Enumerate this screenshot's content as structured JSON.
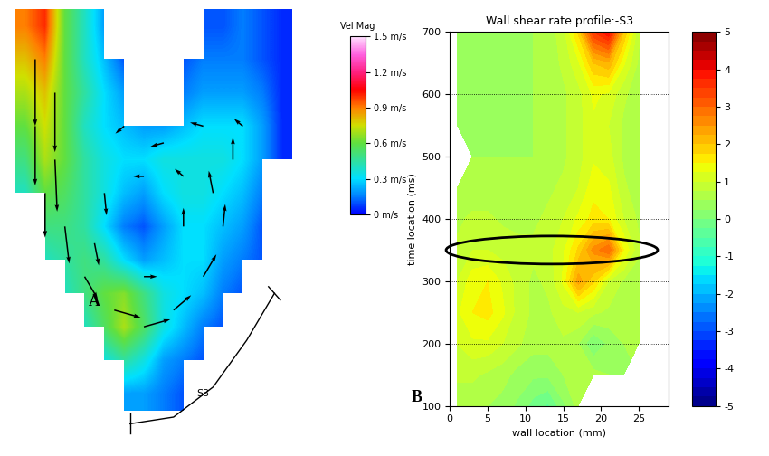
{
  "chart_data": [
    {
      "type": "vector_field",
      "label": "A",
      "colorbar_title": "Vel Mag",
      "annotation": "S3",
      "tick_labels": false,
      "cells": [
        [
          0.9,
          1.0,
          0.6,
          0.4,
          0.2,
          null,
          null,
          null,
          null,
          0.1,
          0.1,
          0.15,
          0.1,
          0.05
        ],
        [
          0.8,
          0.9,
          0.6,
          0.4,
          0.25,
          0.1,
          null,
          null,
          0.1,
          0.15,
          0.15,
          0.15,
          0.1,
          0.05
        ],
        [
          0.7,
          0.8,
          0.6,
          0.45,
          0.3,
          0.2,
          null,
          null,
          0.15,
          0.2,
          0.2,
          0.2,
          0.15,
          0.05
        ],
        [
          0.6,
          0.75,
          0.6,
          0.4,
          0.3,
          0.25,
          0.2,
          0.2,
          0.25,
          0.3,
          0.3,
          0.3,
          0.2,
          0.05
        ],
        [
          0.5,
          0.7,
          0.6,
          0.45,
          0.35,
          0.3,
          0.3,
          0.35,
          0.35,
          0.35,
          0.35,
          0.3,
          0.2,
          0.05
        ],
        [
          0.4,
          0.6,
          0.55,
          0.45,
          0.35,
          0.25,
          0.2,
          0.3,
          0.35,
          0.35,
          0.3,
          0.25,
          0.15,
          null
        ],
        [
          null,
          0.5,
          0.5,
          0.45,
          0.3,
          0.15,
          0.1,
          0.2,
          0.3,
          0.3,
          0.25,
          0.2,
          0.1,
          null
        ],
        [
          null,
          0.4,
          0.45,
          0.5,
          0.45,
          0.3,
          0.2,
          0.25,
          0.3,
          0.3,
          0.2,
          0.15,
          0.1,
          null
        ],
        [
          null,
          null,
          0.4,
          0.5,
          0.6,
          0.65,
          0.5,
          0.35,
          0.3,
          0.25,
          0.15,
          0.1,
          null,
          null
        ],
        [
          null,
          null,
          null,
          0.4,
          0.55,
          0.7,
          0.55,
          0.35,
          0.25,
          0.15,
          0.1,
          null,
          null,
          null
        ],
        [
          null,
          null,
          null,
          null,
          0.35,
          0.45,
          0.35,
          0.2,
          0.15,
          0.1,
          null,
          null,
          null,
          null
        ],
        [
          null,
          null,
          null,
          null,
          null,
          0.2,
          0.2,
          0.15,
          0.1,
          null,
          null,
          null,
          null,
          null
        ]
      ],
      "vectors": {
        "x": [
          0.5,
          0.5,
          1,
          1.5,
          1.5,
          2,
          3,
          4.5,
          6,
          7.5,
          9,
          10,
          10.5,
          9.5,
          9,
          7,
          5,
          11,
          4,
          6,
          8,
          6,
          8,
          3.5
        ],
        "y": [
          1,
          3,
          5,
          2,
          4,
          6,
          7.5,
          8.5,
          9,
          8.5,
          7.5,
          6,
          4,
          5,
          3,
          3.5,
          3,
          3,
          5,
          7.5,
          6,
          4.5,
          4.5,
          6.5
        ],
        "u": [
          0,
          0,
          0,
          0,
          0.05,
          0.1,
          0.3,
          0.6,
          0.6,
          0.4,
          0.3,
          0.05,
          0,
          -0.1,
          -0.3,
          -0.3,
          -0.2,
          -0.2,
          0.05,
          0.3,
          0,
          -0.25,
          -0.2,
          0.1
        ],
        "v": [
          0.9,
          0.8,
          0.6,
          0.8,
          0.7,
          0.5,
          0.3,
          0.1,
          -0.1,
          -0.2,
          -0.3,
          -0.3,
          -0.3,
          -0.3,
          -0.05,
          0.05,
          0.1,
          -0.1,
          0.3,
          0,
          -0.25,
          0,
          -0.1,
          0.3
        ]
      },
      "colorbar_range": [
        0,
        1.5
      ],
      "colorbar_ticks": [
        {
          "value": 0,
          "label": "0 m/s"
        },
        {
          "value": 0.3,
          "label": "0.3 m/s"
        },
        {
          "value": 0.6,
          "label": "0.6 m/s"
        },
        {
          "value": 0.9,
          "label": "0.9 m/s"
        },
        {
          "value": 1.2,
          "label": "1.2 m/s"
        },
        {
          "value": 1.5,
          "label": "1.5 m/s"
        }
      ]
    },
    {
      "type": "heatmap",
      "label": "B",
      "title": "Wall shear rate profile:-S3",
      "x_label": "wall location (mm)",
      "y_label": "time location (ms)",
      "x": [
        1,
        3,
        5,
        7,
        9,
        11,
        13,
        15,
        17,
        19,
        21,
        23,
        25
      ],
      "y": [
        100,
        150,
        200,
        250,
        300,
        350,
        400,
        450,
        500,
        550,
        600,
        650,
        700
      ],
      "cells": [
        [
          0.6,
          0.6,
          0.5,
          0.4,
          0.2,
          -0.1,
          -0.3,
          0.2,
          0.6,
          null,
          null,
          null,
          null
        ],
        [
          0.8,
          0.8,
          0.7,
          0.6,
          0.4,
          0.3,
          0.3,
          0.5,
          0.7,
          0.6,
          0.5,
          0.4,
          null
        ],
        [
          1.0,
          1.2,
          1.2,
          1.0,
          0.8,
          0.6,
          0.6,
          0.7,
          0.5,
          0.0,
          0.3,
          0.5,
          0.6
        ],
        [
          1.2,
          1.5,
          1.6,
          1.3,
          0.9,
          0.7,
          0.7,
          0.9,
          1.0,
          0.8,
          0.7,
          0.6,
          0.6
        ],
        [
          1.0,
          1.4,
          1.5,
          1.2,
          0.9,
          0.7,
          0.8,
          1.3,
          2.4,
          1.8,
          1.0,
          0.7,
          0.6
        ],
        [
          0.8,
          1.0,
          1.0,
          0.9,
          0.8,
          0.8,
          0.9,
          1.2,
          1.8,
          2.6,
          3.0,
          1.5,
          0.8
        ],
        [
          0.7,
          0.8,
          0.8,
          0.7,
          0.7,
          0.7,
          0.8,
          1.0,
          1.3,
          1.6,
          1.5,
          1.0,
          0.7
        ],
        [
          0.6,
          0.6,
          0.6,
          0.6,
          0.6,
          0.6,
          0.7,
          0.8,
          1.0,
          1.4,
          1.3,
          0.8,
          0.6
        ],
        [
          null,
          0.5,
          0.5,
          0.5,
          0.5,
          0.5,
          0.6,
          0.7,
          0.9,
          1.2,
          1.1,
          0.7,
          0.5
        ],
        [
          0.4,
          0.4,
          0.5,
          0.5,
          0.4,
          0.5,
          0.6,
          0.7,
          0.9,
          1.2,
          1.0,
          0.7,
          0.5
        ],
        [
          0.3,
          0.4,
          0.4,
          0.5,
          0.5,
          0.5,
          0.6,
          0.7,
          0.9,
          1.3,
          1.2,
          0.8,
          0.6
        ],
        [
          0.3,
          0.3,
          0.4,
          0.4,
          0.4,
          0.5,
          0.6,
          0.8,
          1.2,
          2.0,
          2.2,
          1.3,
          0.7
        ],
        [
          0.3,
          0.3,
          0.4,
          0.4,
          0.4,
          0.5,
          0.6,
          0.9,
          1.8,
          3.5,
          4.0,
          2.0,
          0.8
        ]
      ],
      "xlim": [
        0,
        29
      ],
      "xticks": [
        0,
        5,
        10,
        15,
        20,
        25
      ],
      "ylim": [
        100,
        700
      ],
      "yticks": [
        100,
        200,
        300,
        400,
        500,
        600,
        700
      ],
      "grid": true,
      "colorbar_range": [
        -5,
        5
      ],
      "colorbar_ticks": [
        -5,
        -4,
        -3,
        -2,
        -1,
        0,
        1,
        2,
        3,
        4,
        5
      ],
      "highlight": {
        "center": [
          13.5,
          350
        ],
        "width": 28,
        "height": 45
      }
    }
  ]
}
